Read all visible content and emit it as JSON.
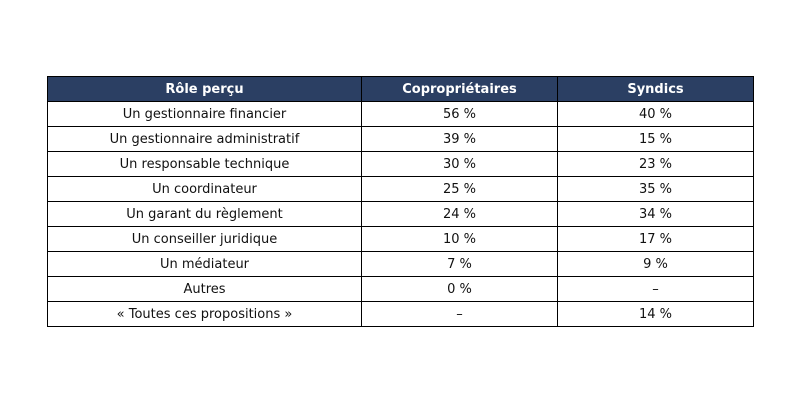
{
  "chart_data": {
    "type": "table",
    "columns": [
      "Rôle perçu",
      "Copropriétaires",
      "Syndics"
    ],
    "rows": [
      [
        "Un gestionnaire financier",
        "56 %",
        "40 %"
      ],
      [
        "Un gestionnaire administratif",
        "39 %",
        "15 %"
      ],
      [
        "Un responsable technique",
        "30 %",
        "23 %"
      ],
      [
        "Un coordinateur",
        "25 %",
        "35 %"
      ],
      [
        "Un garant du règlement",
        "24 %",
        "34 %"
      ],
      [
        "Un conseiller juridique",
        "10 %",
        "17 %"
      ],
      [
        "Un médiateur",
        "7 %",
        "9 %"
      ],
      [
        "Autres",
        "0 %",
        "–"
      ],
      [
        "« Toutes ces propositions »",
        "–",
        "14 %"
      ]
    ],
    "header_color": "#2b3f63",
    "header_text_color": "#ffffff"
  }
}
